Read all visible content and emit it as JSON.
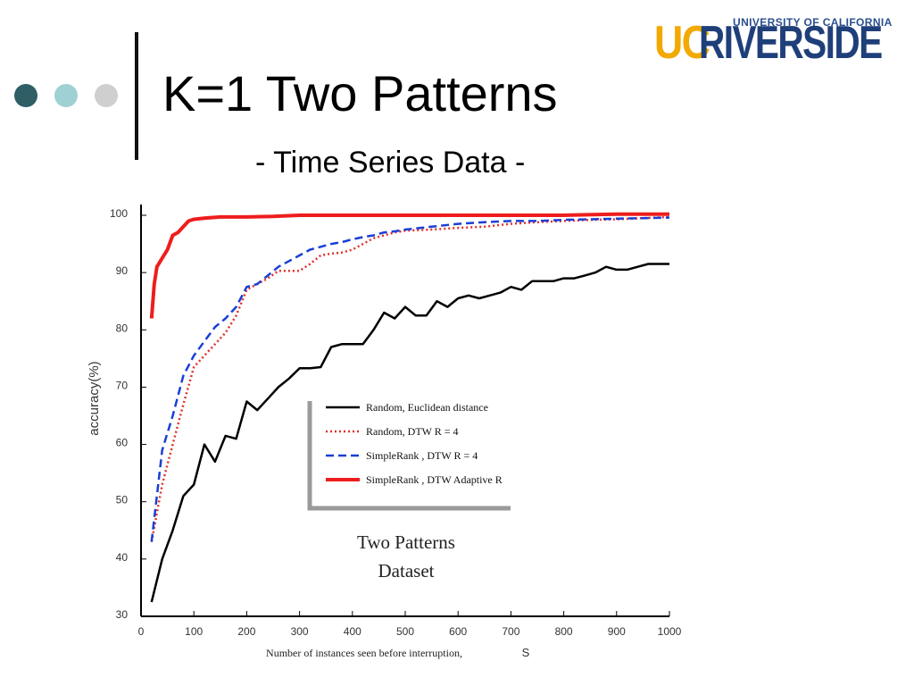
{
  "slide": {
    "title": "K=1 Two Patterns",
    "subtitle": "- Time Series Data -",
    "logo": {
      "top_text": "UNIVERSITY OF CALIFORNIA",
      "uc": "UC",
      "riverside": "RIVERSIDE"
    },
    "dot_colors": [
      "#2f5e66",
      "#9fd1d4",
      "#cfcfcf"
    ],
    "bar_color": "#111111"
  },
  "chart_data": {
    "type": "line",
    "xlabel": "Number of instances seen before interruption,",
    "xlabel_symbol": "S",
    "ylabel": "accuracy(%)",
    "xlim": [
      0,
      1000
    ],
    "ylim": [
      30,
      100
    ],
    "xticks": [
      0,
      100,
      200,
      300,
      400,
      500,
      600,
      700,
      800,
      900,
      1000
    ],
    "yticks": [
      30,
      40,
      50,
      60,
      70,
      80,
      90,
      100
    ],
    "grid": false,
    "legend_position": "center-right",
    "annotation": [
      "Two Patterns",
      "Dataset"
    ],
    "series": [
      {
        "name": "Random, Euclidean distance",
        "color": "#000000",
        "style": "solid",
        "x": [
          20,
          40,
          60,
          80,
          100,
          120,
          140,
          160,
          180,
          200,
          220,
          240,
          260,
          280,
          300,
          320,
          340,
          360,
          380,
          400,
          420,
          440,
          460,
          480,
          500,
          520,
          540,
          560,
          580,
          600,
          620,
          640,
          660,
          680,
          700,
          720,
          740,
          760,
          780,
          800,
          820,
          840,
          860,
          880,
          900,
          920,
          940,
          960,
          980,
          1000
        ],
        "y": [
          32.5,
          40,
          45,
          51,
          53,
          60,
          57,
          61.5,
          61,
          67.5,
          66,
          68,
          70,
          71.5,
          73.3,
          73.3,
          73.5,
          77,
          77.5,
          77.5,
          77.5,
          80,
          83,
          82,
          84,
          82.5,
          82.5,
          85,
          84,
          85.5,
          86,
          85.5,
          86,
          86.5,
          87.5,
          87,
          88.5,
          88.5,
          88.5,
          89,
          89,
          89.5,
          90,
          91,
          90.5,
          90.5,
          91,
          91.5,
          91.5,
          91.5
        ]
      },
      {
        "name": "Random, DTW",
        "name_suffix": "R = 4",
        "color": "#e0302a",
        "style": "dotted",
        "x": [
          20,
          40,
          60,
          80,
          100,
          120,
          140,
          160,
          180,
          200,
          220,
          240,
          260,
          280,
          300,
          320,
          340,
          360,
          380,
          400,
          420,
          440,
          460,
          480,
          500,
          550,
          600,
          650,
          700,
          750,
          800,
          850,
          900,
          950,
          1000
        ],
        "y": [
          43,
          53,
          60,
          67,
          73.5,
          75.5,
          77.5,
          79.5,
          82.5,
          87,
          88,
          89,
          90.3,
          90.3,
          90.3,
          91.5,
          93,
          93.3,
          93.5,
          94,
          95,
          96,
          96.5,
          97,
          97.3,
          97.5,
          97.8,
          98,
          98.5,
          98.8,
          99,
          99.2,
          99.3,
          99.5,
          99.7
        ]
      },
      {
        "name": "SimpleRank , DTW",
        "name_suffix": "R = 4",
        "color": "#1a3fd6",
        "style": "dashed",
        "x": [
          20,
          40,
          60,
          80,
          100,
          120,
          140,
          160,
          180,
          200,
          220,
          240,
          260,
          280,
          300,
          320,
          340,
          360,
          380,
          400,
          420,
          440,
          460,
          480,
          500,
          550,
          600,
          650,
          700,
          750,
          800,
          850,
          900,
          950,
          1000
        ],
        "y": [
          43,
          59,
          65,
          72,
          75.5,
          78,
          80.5,
          82,
          84,
          87.5,
          88,
          89.5,
          91,
          92,
          93,
          94,
          94.5,
          95,
          95.3,
          95.8,
          96.2,
          96.5,
          97,
          97.2,
          97.5,
          98,
          98.5,
          98.8,
          99,
          99,
          99.2,
          99.3,
          99.4,
          99.5,
          99.6
        ]
      },
      {
        "name": "SimpleRank , DTW Adaptive",
        "name_suffix": "R",
        "color": "#ee1d1d",
        "style": "solid-thick",
        "x": [
          20,
          25,
          30,
          40,
          50,
          60,
          70,
          80,
          90,
          100,
          120,
          150,
          200,
          250,
          300,
          350,
          400,
          450,
          500,
          600,
          700,
          800,
          900,
          1000
        ],
        "y": [
          82,
          88,
          91,
          92.5,
          94,
          96.5,
          97,
          98,
          99,
          99.3,
          99.5,
          99.7,
          99.7,
          99.8,
          100,
          100,
          100,
          100,
          100,
          100,
          100,
          100,
          100.2,
          100.2
        ]
      }
    ]
  }
}
